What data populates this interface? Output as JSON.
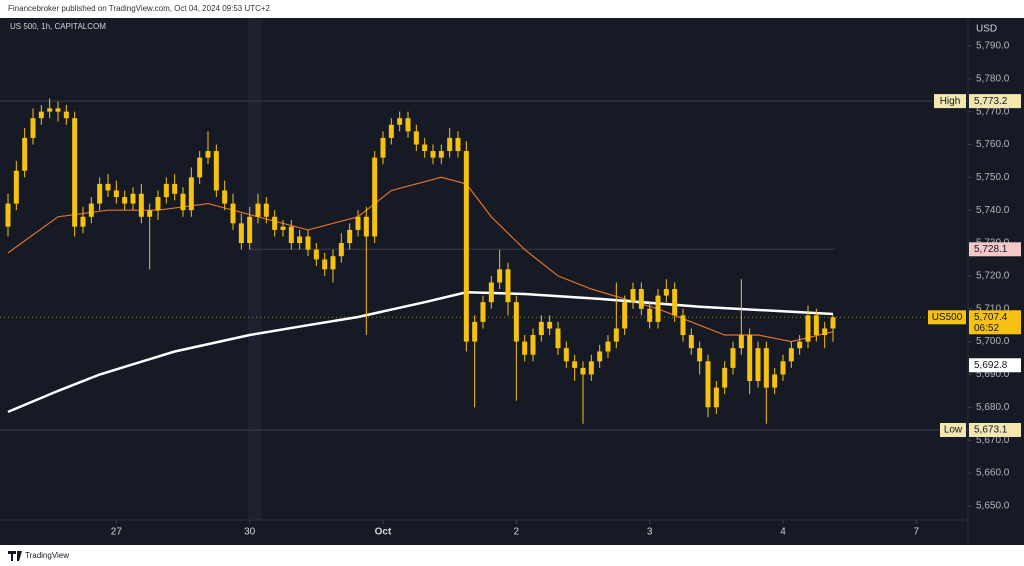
{
  "header": {
    "published": "Financebroker published on TradingView.com, Oct 04, 2024 09:53 UTC+2",
    "brand": "TradingView"
  },
  "chart_data": {
    "type": "candlestick",
    "title": "US 500, 1h, CAPITALCOM",
    "y_unit": "USD",
    "color": "#f5c211",
    "grid": false,
    "open": [
      5735,
      5742,
      5752,
      5762,
      5768,
      5770,
      5771,
      5770,
      5768,
      5735,
      5738,
      5742,
      5748,
      5746,
      5744,
      5742,
      5745,
      5738,
      5740,
      5744,
      5748,
      5745,
      5740,
      5750,
      5756,
      5758,
      5746,
      5742,
      5736,
      5730,
      5738,
      5742,
      5738,
      5734,
      5735,
      5730,
      5732,
      5728,
      5725,
      5722,
      5726,
      5730,
      5734,
      5738,
      5732,
      5756,
      5762,
      5766,
      5768,
      5764,
      5760,
      5758,
      5756,
      5758,
      5762,
      5758,
      5700,
      5706,
      5712,
      5718,
      5722,
      5712,
      5700,
      5696,
      5702,
      5706,
      5704,
      5698,
      5694,
      5692,
      5690,
      5694,
      5697,
      5700,
      5704,
      5712,
      5716,
      5710,
      5706,
      5714,
      5716,
      5708,
      5702,
      5698,
      5694,
      5680,
      5686,
      5692,
      5698,
      5702,
      5688,
      5698,
      5686,
      5690,
      5694,
      5698,
      5700,
      5708,
      5702,
      5704
    ],
    "high": [
      5745,
      5755,
      5765,
      5771,
      5772,
      5774,
      5773,
      5772,
      5770,
      5741,
      5744,
      5750,
      5751,
      5749,
      5746,
      5747,
      5748,
      5742,
      5746,
      5750,
      5751,
      5747,
      5753,
      5758,
      5764,
      5760,
      5749,
      5745,
      5739,
      5741,
      5745,
      5744,
      5740,
      5737,
      5737,
      5734,
      5734,
      5730,
      5727,
      5728,
      5733,
      5736,
      5740,
      5741,
      5758,
      5764,
      5768,
      5770,
      5770,
      5766,
      5762,
      5760,
      5760,
      5765,
      5764,
      5761,
      5708,
      5714,
      5720,
      5728,
      5724,
      5714,
      5702,
      5704,
      5708,
      5708,
      5706,
      5700,
      5696,
      5694,
      5696,
      5699,
      5702,
      5718,
      5714,
      5718,
      5718,
      5712,
      5716,
      5719,
      5718,
      5710,
      5704,
      5700,
      5696,
      5688,
      5694,
      5700,
      5719,
      5704,
      5700,
      5700,
      5692,
      5696,
      5700,
      5702,
      5711,
      5710,
      5706,
      5708
    ],
    "low": [
      5732,
      5740,
      5750,
      5760,
      5766,
      5768,
      5767,
      5766,
      5732,
      5733,
      5736,
      5740,
      5744,
      5742,
      5740,
      5740,
      5736,
      5722,
      5737,
      5742,
      5743,
      5738,
      5738,
      5748,
      5754,
      5744,
      5740,
      5734,
      5728,
      5728,
      5736,
      5736,
      5732,
      5732,
      5728,
      5728,
      5726,
      5723,
      5720,
      5718,
      5724,
      5728,
      5732,
      5702,
      5730,
      5754,
      5760,
      5764,
      5762,
      5758,
      5756,
      5754,
      5754,
      5756,
      5756,
      5697,
      5680,
      5704,
      5710,
      5716,
      5708,
      5682,
      5694,
      5694,
      5700,
      5702,
      5696,
      5692,
      5688,
      5675,
      5688,
      5692,
      5695,
      5698,
      5702,
      5710,
      5708,
      5704,
      5704,
      5712,
      5706,
      5700,
      5696,
      5690,
      5677,
      5678,
      5684,
      5690,
      5696,
      5684,
      5686,
      5675,
      5684,
      5688,
      5692,
      5696,
      5698,
      5700,
      5698,
      5700
    ],
    "close": [
      5742,
      5752,
      5762,
      5768,
      5770,
      5771,
      5770,
      5768,
      5735,
      5738,
      5742,
      5748,
      5746,
      5744,
      5742,
      5745,
      5738,
      5740,
      5744,
      5748,
      5745,
      5740,
      5750,
      5756,
      5758,
      5746,
      5742,
      5736,
      5730,
      5738,
      5742,
      5738,
      5734,
      5735,
      5730,
      5732,
      5728,
      5725,
      5722,
      5726,
      5730,
      5734,
      5738,
      5732,
      5756,
      5762,
      5766,
      5768,
      5764,
      5760,
      5758,
      5756,
      5758,
      5762,
      5758,
      5700,
      5706,
      5712,
      5718,
      5722,
      5712,
      5700,
      5696,
      5702,
      5706,
      5704,
      5698,
      5694,
      5692,
      5690,
      5694,
      5697,
      5700,
      5704,
      5712,
      5716,
      5710,
      5706,
      5714,
      5716,
      5708,
      5702,
      5698,
      5694,
      5680,
      5686,
      5692,
      5698,
      5702,
      5688,
      5698,
      5686,
      5690,
      5694,
      5698,
      5700,
      5708,
      5702,
      5704,
      5707.4
    ],
    "lines": [
      {
        "color": "#e0702a",
        "x": [
          0,
          6,
          12,
          18,
          24,
          30,
          36,
          42,
          46,
          52,
          55,
          58,
          62,
          66,
          70,
          74,
          78,
          82,
          86,
          90,
          94,
          99
        ],
        "values": [
          5727,
          5738,
          5740,
          5740,
          5742,
          5738,
          5734,
          5738,
          5746,
          5750,
          5748,
          5738,
          5728,
          5720,
          5716,
          5713,
          5710,
          5706,
          5702,
          5702,
          5700,
          5703
        ]
      },
      {
        "color": "#ffffff",
        "x": [
          0,
          6,
          11,
          20,
          29,
          36,
          42,
          50,
          55,
          62,
          71,
          83,
          99
        ],
        "values": [
          5678.6,
          5685,
          5690,
          5697,
          5702,
          5705,
          5707.5,
          5712,
          5715,
          5714.5,
          5713,
          5710.6,
          5708.4
        ]
      }
    ],
    "xlim": [
      -0.96,
      115.2
    ],
    "xticks": [
      {
        "value": 13,
        "label": "27"
      },
      {
        "value": 29,
        "label": "30"
      },
      {
        "value": 45,
        "label": "Oct"
      },
      {
        "value": 61,
        "label": "2"
      },
      {
        "value": 77,
        "label": "3"
      },
      {
        "value": 93,
        "label": "4"
      },
      {
        "value": 109,
        "label": "7"
      }
    ],
    "ylim": [
      5645.7,
      5798.5
    ],
    "yticks": [
      {
        "value": 5650,
        "label": "5,650.0"
      },
      {
        "value": 5660,
        "label": "5,660.0"
      },
      {
        "value": 5670,
        "label": "5,670.0"
      },
      {
        "value": 5680,
        "label": "5,680.0"
      },
      {
        "value": 5690,
        "label": "5,690.0"
      },
      {
        "value": 5700,
        "label": "5,700.0"
      },
      {
        "value": 5710,
        "label": "5,710.0"
      },
      {
        "value": 5720,
        "label": "5,720.0"
      },
      {
        "value": 5730,
        "label": "5,730.0"
      },
      {
        "value": 5740,
        "label": "5,740.0"
      },
      {
        "value": 5750,
        "label": "5,750.0"
      },
      {
        "value": 5760,
        "label": "5,760.0"
      },
      {
        "value": 5770,
        "label": "5,770.0"
      },
      {
        "value": 5780,
        "label": "5,780.0"
      },
      {
        "value": 5790,
        "label": "5,790.0"
      }
    ],
    "price_markers": [
      {
        "name": "High",
        "value": 5773.2,
        "value_label": "5,773.2",
        "color": "#f3e7b0"
      },
      {
        "value": 5728.1,
        "value_label": "5,728.1",
        "color": "#f6c9c9"
      },
      {
        "name": "US500",
        "value": 5707.4,
        "value_label": "5,707.4",
        "countdown": "06:52",
        "color": "#f5c211"
      },
      {
        "value": 5692.8,
        "value_label": "5,692.8",
        "color": "#ffffff"
      },
      {
        "name": "Low",
        "value": 5673.1,
        "value_label": "5,673.1",
        "color": "#f3e7b0"
      }
    ]
  }
}
